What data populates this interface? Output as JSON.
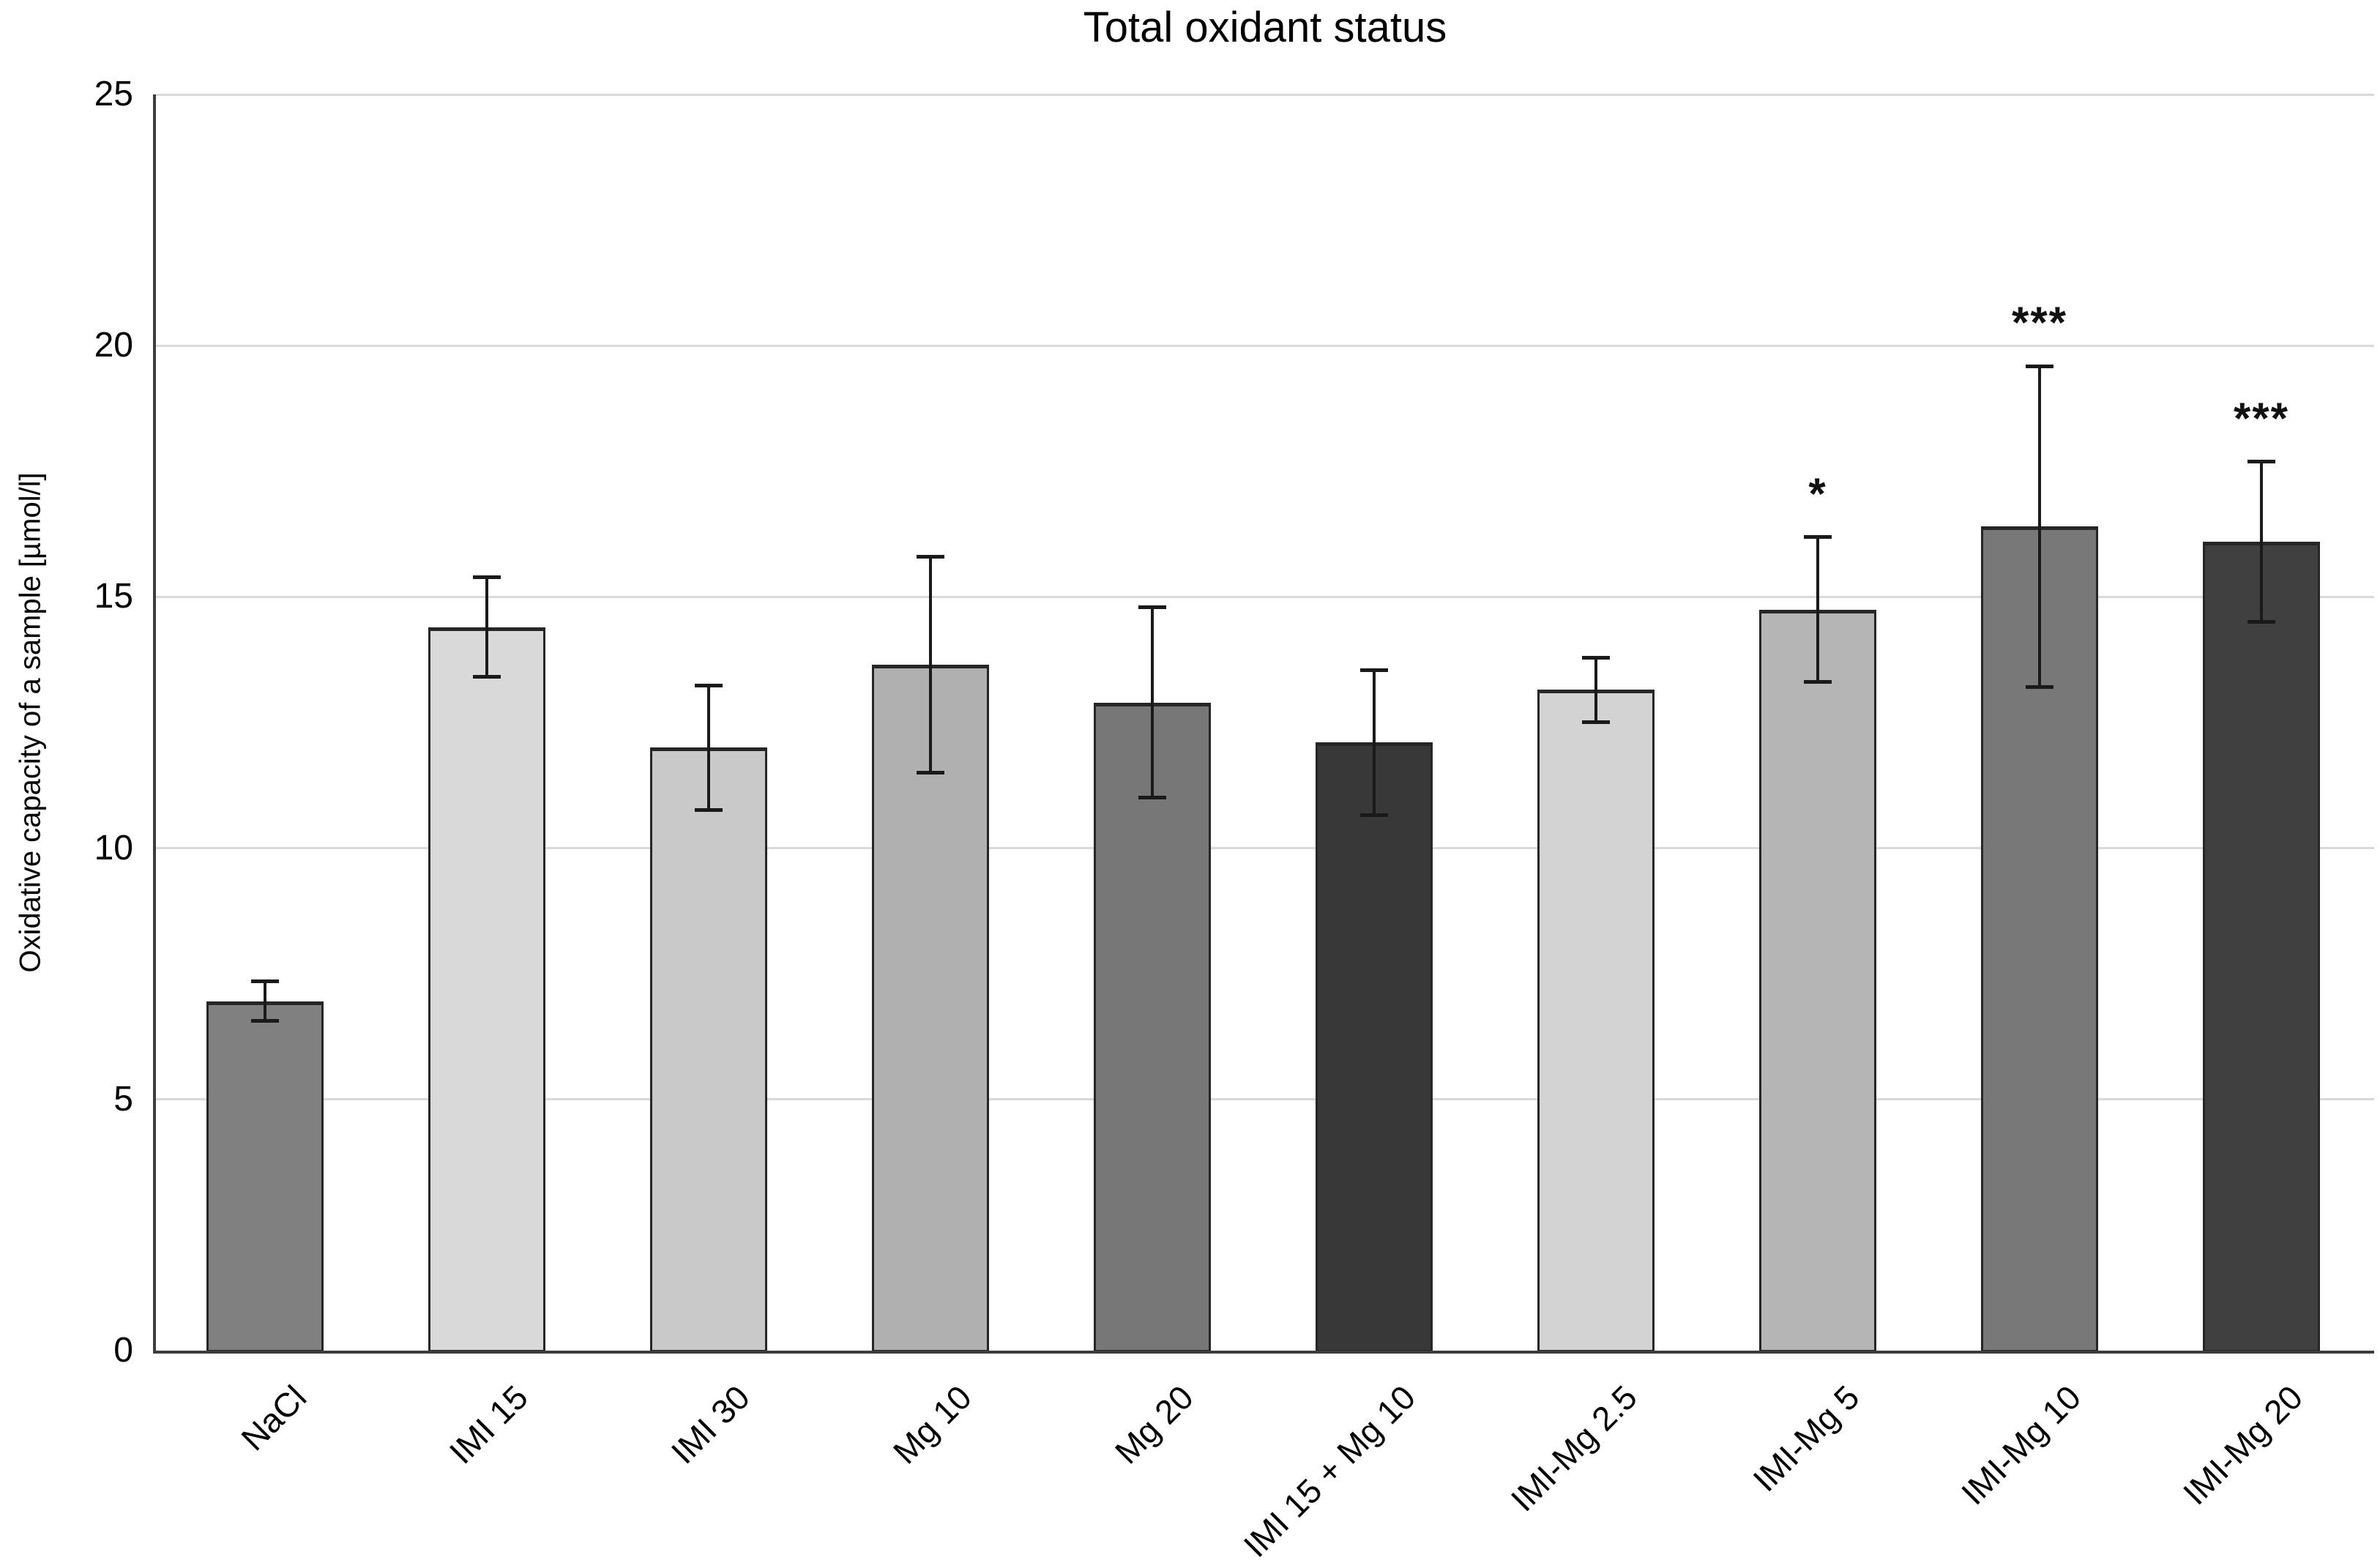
{
  "title": "Total oxidant status",
  "y_axis": {
    "label": "Oxidative capacity of a sample [µmol/l]"
  },
  "chart_data": {
    "type": "bar",
    "title": "Total oxidant status",
    "xlabel": "",
    "ylabel": "Oxidative capacity of a sample [µmol/l]",
    "ylim": [
      0,
      25
    ],
    "yticks": [
      0,
      5,
      10,
      15,
      20,
      25
    ],
    "grid": true,
    "legend": false,
    "categories": [
      "NaCl",
      "IMI 15",
      "IMI 30",
      "Mg 10",
      "Mg 20",
      "IMI 15 + Mg 10",
      "IMI-Mg 2.5",
      "IMI-Mg 5",
      "IMI-Mg 10",
      "IMI-Mg 20"
    ],
    "values": [
      6.95,
      14.4,
      12.0,
      13.65,
      12.9,
      12.1,
      13.15,
      14.75,
      16.4,
      16.1
    ],
    "error_bars": [
      0.4,
      1.0,
      1.25,
      2.15,
      1.9,
      1.45,
      0.65,
      1.45,
      3.2,
      1.6
    ],
    "significance": [
      "",
      "",
      "",
      "",
      "",
      "",
      "",
      "*",
      "***",
      "***"
    ],
    "bar_colors": [
      "#808080",
      "#d9d9d9",
      "#c9c9c9",
      "#b0b0b0",
      "#777777",
      "#383838",
      "#d3d3d3",
      "#b5b5b5",
      "#787878",
      "#404040"
    ],
    "bar_border_color": "#262626",
    "error_bar_color": "#1a1a1a",
    "axis_color": "#3d3d3d",
    "gridline_color": "#d9d9d9",
    "text_color": "#000000"
  }
}
